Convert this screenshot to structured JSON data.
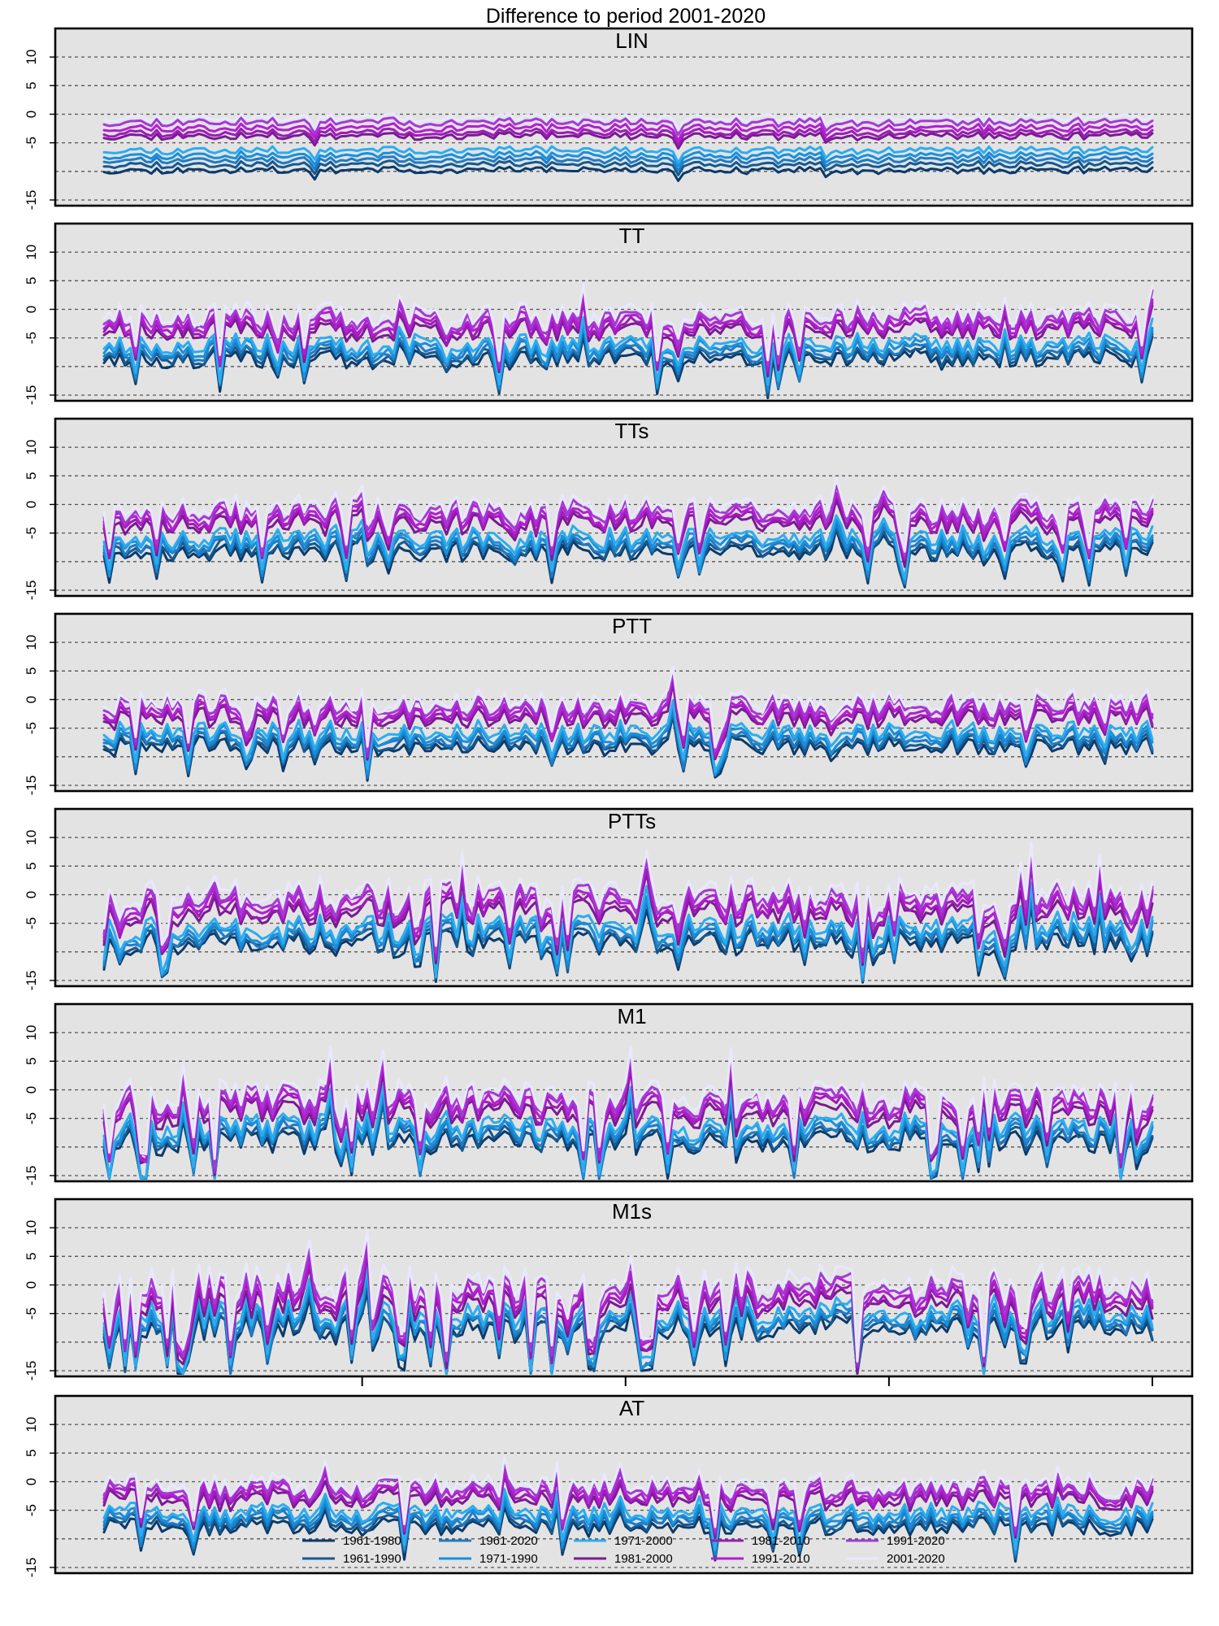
{
  "figure_title": "Difference to period 2001-2020",
  "palette": {
    "1961-1980": "#0b3a6b",
    "1961-1990": "#145a8f",
    "1961-2020": "#1f7bc4",
    "1971-1990": "#1790dc",
    "1971-2000": "#2cacef",
    "1981-2000": "#7a1a92",
    "1981-2010": "#9b1cb6",
    "1991-2010": "#b31ed0",
    "1991-2020": "#a33ad6",
    "2001-2020": "#e8e8ff"
  },
  "chart_data": {
    "type": "line",
    "n_points": 200,
    "ylim": [
      -16,
      15
    ],
    "y_ticks": [
      -15,
      -5,
      0,
      5,
      10
    ],
    "y_tick_labels": [
      "-15",
      "-5",
      "0",
      "5",
      "10"
    ],
    "gridlines_y": [
      -15,
      -10,
      -5,
      0,
      5,
      10
    ],
    "x_ticks_shown_on_panel": "M1s",
    "x_tick_positions": [
      50,
      100,
      150,
      200
    ],
    "series_names": [
      "1961-1980",
      "1961-1990",
      "1961-2020",
      "1971-1990",
      "1971-2000",
      "1981-2000",
      "1981-2010",
      "1991-2010",
      "1991-2020",
      "2001-2020"
    ],
    "legend": {
      "placement": "bottom-center",
      "rows": [
        [
          "1961-1980",
          "1961-2020",
          "1971-2000",
          "1981-2010",
          "1991-2020"
        ],
        [
          "1961-1990",
          "1971-1990",
          "1981-2000",
          "1991-2010",
          "2001-2020"
        ]
      ]
    },
    "panels": [
      {
        "title": "LIN",
        "offsets": [
          -9.8,
          -8.8,
          -8.0,
          -7.2,
          -6.3,
          -3.8,
          -3.2,
          -2.4,
          -1.4,
          -0.6
        ],
        "noise": 0.9,
        "spike_prob": 0.01,
        "seed": 11
      },
      {
        "title": "TT",
        "offsets": [
          -8.6,
          -8.0,
          -7.4,
          -6.8,
          -6.0,
          -3.6,
          -3.0,
          -2.4,
          -1.6,
          -0.6
        ],
        "noise": 2.6,
        "spike_prob": 0.06,
        "seed": 23
      },
      {
        "title": "TTs",
        "offsets": [
          -8.4,
          -7.8,
          -7.2,
          -6.6,
          -5.8,
          -3.4,
          -2.8,
          -2.2,
          -1.4,
          -0.5
        ],
        "noise": 2.7,
        "spike_prob": 0.07,
        "seed": 37
      },
      {
        "title": "PTT",
        "offsets": [
          -8.2,
          -7.6,
          -7.0,
          -6.4,
          -5.6,
          -3.2,
          -2.6,
          -2.0,
          -1.2,
          -0.4
        ],
        "noise": 2.5,
        "spike_prob": 0.06,
        "seed": 41
      },
      {
        "title": "PTTs",
        "offsets": [
          -8.4,
          -7.8,
          -7.2,
          -6.6,
          -5.8,
          -3.2,
          -2.4,
          -1.6,
          -0.8,
          0.4
        ],
        "noise": 3.6,
        "spike_prob": 0.09,
        "seed": 53
      },
      {
        "title": "M1",
        "offsets": [
          -9.0,
          -8.4,
          -7.8,
          -7.2,
          -6.4,
          -4.0,
          -3.2,
          -2.6,
          -1.8,
          -0.8
        ],
        "noise": 3.4,
        "spike_prob": 0.09,
        "seed": 67
      },
      {
        "title": "M1s",
        "offsets": [
          -7.6,
          -7.0,
          -6.4,
          -5.8,
          -5.0,
          -3.2,
          -2.4,
          -1.6,
          -0.6,
          0.6
        ],
        "noise": 4.0,
        "spike_prob": 0.1,
        "seed": 79
      },
      {
        "title": "AT",
        "offsets": [
          -8.0,
          -7.4,
          -6.8,
          -6.2,
          -5.4,
          -3.2,
          -2.6,
          -2.0,
          -1.4,
          -0.6
        ],
        "noise": 2.5,
        "spike_prob": 0.06,
        "seed": 89
      }
    ]
  }
}
